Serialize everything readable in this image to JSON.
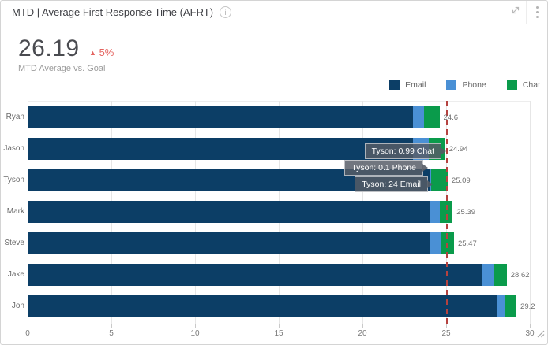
{
  "header": {
    "title": "MTD | Average First Response Time (AFRT)",
    "info_icon": "i"
  },
  "kpi": {
    "value": "26.19",
    "delta_symbol": "▲",
    "delta": "5%",
    "delta_color": "#e4635f",
    "subtitle": "MTD Average vs. Goal"
  },
  "legend": [
    {
      "label": "Email",
      "color": "#0c3e66"
    },
    {
      "label": "Phone",
      "color": "#4a90d5"
    },
    {
      "label": "Chat",
      "color": "#0a9b4b"
    }
  ],
  "chart_data": {
    "type": "bar",
    "orientation": "horizontal",
    "stacked": true,
    "title": "MTD | Average First Response Time (AFRT)",
    "categories": [
      "Ryan",
      "Jason",
      "Tyson",
      "Mark",
      "Steve",
      "Jake",
      "Jon"
    ],
    "series": [
      {
        "name": "Email",
        "color": "#0c3e66",
        "values": [
          23.0,
          23.0,
          24.0,
          24.0,
          24.0,
          27.1,
          28.07
        ]
      },
      {
        "name": "Phone",
        "color": "#4a90d5",
        "values": [
          0.7,
          0.96,
          0.1,
          0.6,
          0.67,
          0.76,
          0.42
        ]
      },
      {
        "name": "Chat",
        "color": "#0a9b4b",
        "values": [
          0.9,
          0.98,
          0.99,
          0.79,
          0.8,
          0.76,
          0.71
        ]
      }
    ],
    "totals": [
      24.6,
      24.94,
      25.09,
      25.39,
      25.47,
      28.62,
      29.2
    ],
    "total_labels": [
      "24.6",
      "24.94",
      "25.09",
      "25.39",
      "25.47",
      "28.62",
      "29.2"
    ],
    "xlim": [
      0,
      30
    ],
    "x_ticks": [
      0,
      5,
      10,
      15,
      20,
      25,
      30
    ],
    "goal_line": {
      "value": 25,
      "color": "#b5423f",
      "style": "dashed"
    },
    "grid": true,
    "legend_position": "top-right"
  },
  "tooltips": [
    {
      "text": "Tyson: 0.99 Chat"
    },
    {
      "text": "Tyson: 0.1 Phone"
    },
    {
      "text": "Tyson: 24 Email"
    }
  ]
}
